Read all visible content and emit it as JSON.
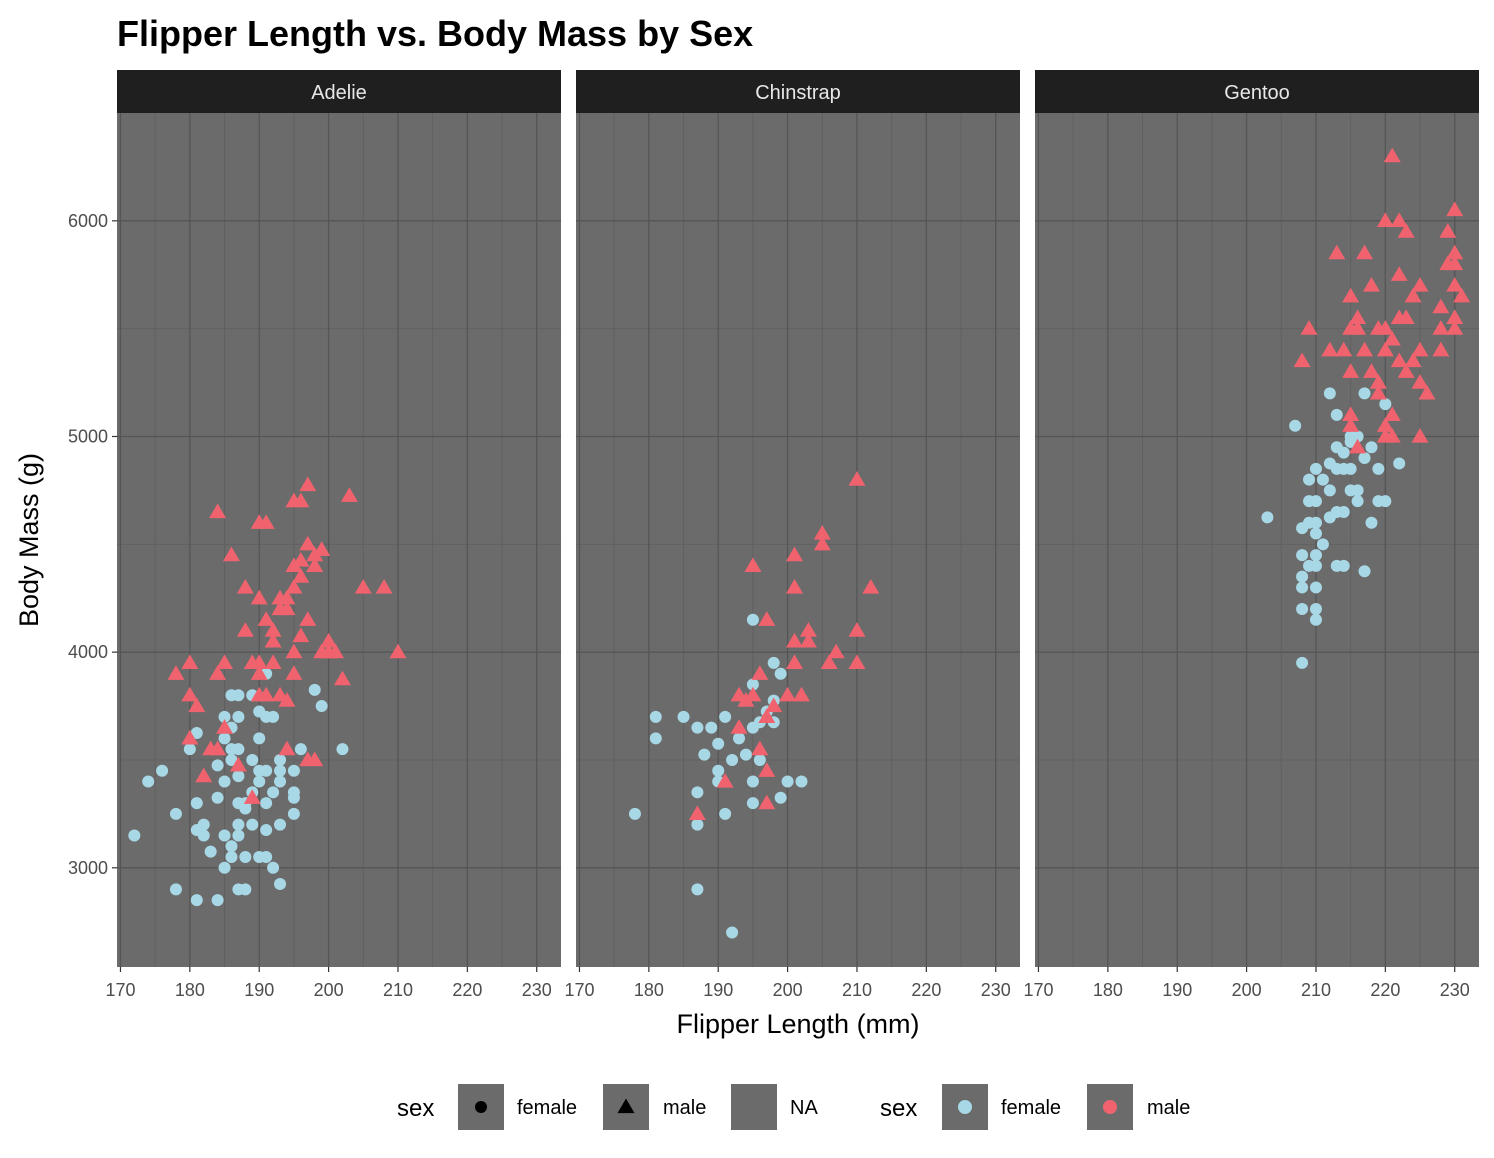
{
  "chart_data": {
    "type": "scatter",
    "title": "Flipper Length vs. Body Mass by Sex",
    "xlabel": "Flipper Length (mm)",
    "ylabel": "Body Mass (g)",
    "xlim": [
      169.5,
      233.5
    ],
    "ylim": [
      2540,
      6500
    ],
    "x_ticks": [
      170,
      180,
      190,
      200,
      210,
      220,
      230
    ],
    "y_ticks": [
      3000,
      4000,
      5000,
      6000
    ],
    "grid": true,
    "legend_position": "bottom",
    "colors": {
      "panel_bg": "#6b6b6b",
      "grid_major": "#555555",
      "grid_minor": "#606060",
      "strip_bg": "#1f1f1f",
      "female": "#a8d8e6",
      "male": "#f0636e"
    },
    "facets": [
      {
        "name": "Adelie",
        "female": [
          [
            172,
            3150
          ],
          [
            174,
            3400
          ],
          [
            176,
            3450
          ],
          [
            178,
            3250
          ],
          [
            178,
            2900
          ],
          [
            180,
            3550
          ],
          [
            181,
            3625
          ],
          [
            181,
            3300
          ],
          [
            181,
            2850
          ],
          [
            181,
            3175
          ],
          [
            182,
            3150
          ],
          [
            182,
            3200
          ],
          [
            183,
            3075
          ],
          [
            184,
            3325
          ],
          [
            184,
            3475
          ],
          [
            184,
            2850
          ],
          [
            185,
            3700
          ],
          [
            185,
            3600
          ],
          [
            185,
            3400
          ],
          [
            185,
            3150
          ],
          [
            185,
            3000
          ],
          [
            186,
            3800
          ],
          [
            186,
            3550
          ],
          [
            186,
            3500
          ],
          [
            186,
            3100
          ],
          [
            186,
            3050
          ],
          [
            187,
            3800
          ],
          [
            187,
            3700
          ],
          [
            187,
            3550
          ],
          [
            187,
            3425
          ],
          [
            187,
            3300
          ],
          [
            187,
            3200
          ],
          [
            187,
            3150
          ],
          [
            187,
            2900
          ],
          [
            188,
            3300
          ],
          [
            188,
            3050
          ],
          [
            188,
            2900
          ],
          [
            189,
            3800
          ],
          [
            189,
            3500
          ],
          [
            189,
            3200
          ],
          [
            190,
            3600
          ],
          [
            190,
            3450
          ],
          [
            190,
            3400
          ],
          [
            190,
            3050
          ],
          [
            191,
            3700
          ],
          [
            191,
            3450
          ],
          [
            191,
            3300
          ],
          [
            191,
            3175
          ],
          [
            191,
            3050
          ],
          [
            192,
            3700
          ],
          [
            192,
            3000
          ],
          [
            193,
            3500
          ],
          [
            193,
            3450
          ],
          [
            193,
            3400
          ],
          [
            193,
            3200
          ],
          [
            193,
            2925
          ],
          [
            195,
            3450
          ],
          [
            195,
            3350
          ],
          [
            195,
            3325
          ],
          [
            195,
            3250
          ],
          [
            196,
            3550
          ],
          [
            198,
            3825
          ],
          [
            199,
            3750
          ],
          [
            202,
            3550
          ],
          [
            191,
            3900
          ],
          [
            190,
            3725
          ],
          [
            186,
            3650
          ],
          [
            189,
            3350
          ],
          [
            188,
            3275
          ],
          [
            192,
            3350
          ]
        ],
        "male": [
          [
            178,
            3900
          ],
          [
            180,
            3800
          ],
          [
            180,
            3950
          ],
          [
            180,
            3600
          ],
          [
            181,
            3750
          ],
          [
            182,
            3425
          ],
          [
            183,
            3550
          ],
          [
            184,
            4650
          ],
          [
            184,
            3900
          ],
          [
            184,
            3550
          ],
          [
            185,
            3950
          ],
          [
            185,
            3650
          ],
          [
            186,
            4450
          ],
          [
            187,
            3475
          ],
          [
            188,
            4300
          ],
          [
            188,
            4100
          ],
          [
            189,
            3950
          ],
          [
            189,
            3325
          ],
          [
            190,
            4600
          ],
          [
            190,
            4250
          ],
          [
            190,
            3900
          ],
          [
            190,
            3800
          ],
          [
            190,
            3950
          ],
          [
            191,
            4600
          ],
          [
            191,
            4150
          ],
          [
            191,
            3800
          ],
          [
            192,
            4100
          ],
          [
            192,
            4050
          ],
          [
            192,
            3950
          ],
          [
            193,
            4250
          ],
          [
            193,
            4200
          ],
          [
            193,
            3800
          ],
          [
            194,
            4250
          ],
          [
            194,
            4200
          ],
          [
            194,
            3775
          ],
          [
            194,
            3550
          ],
          [
            195,
            4700
          ],
          [
            195,
            4400
          ],
          [
            195,
            4300
          ],
          [
            195,
            4000
          ],
          [
            195,
            3900
          ],
          [
            196,
            4350
          ],
          [
            196,
            4075
          ],
          [
            196,
            4700
          ],
          [
            197,
            4500
          ],
          [
            197,
            4775
          ],
          [
            197,
            4150
          ],
          [
            197,
            3500
          ],
          [
            198,
            4450
          ],
          [
            198,
            4400
          ],
          [
            199,
            4475
          ],
          [
            199,
            4000
          ],
          [
            200,
            4050
          ],
          [
            200,
            4000
          ],
          [
            201,
            4000
          ],
          [
            202,
            3875
          ],
          [
            203,
            4725
          ],
          [
            205,
            4300
          ],
          [
            208,
            4300
          ],
          [
            210,
            4000
          ],
          [
            196,
            4425
          ],
          [
            198,
            3500
          ]
        ]
      },
      {
        "name": "Chinstrap",
        "female": [
          [
            178,
            3250
          ],
          [
            181,
            3700
          ],
          [
            181,
            3600
          ],
          [
            185,
            3700
          ],
          [
            187,
            3650
          ],
          [
            187,
            3350
          ],
          [
            187,
            3200
          ],
          [
            187,
            2900
          ],
          [
            188,
            3525
          ],
          [
            189,
            3650
          ],
          [
            190,
            3575
          ],
          [
            190,
            3450
          ],
          [
            190,
            3400
          ],
          [
            191,
            3700
          ],
          [
            191,
            3250
          ],
          [
            192,
            3500
          ],
          [
            192,
            2700
          ],
          [
            193,
            3600
          ],
          [
            194,
            3525
          ],
          [
            195,
            4150
          ],
          [
            195,
            3850
          ],
          [
            195,
            3650
          ],
          [
            195,
            3300
          ],
          [
            196,
            3675
          ],
          [
            196,
            3500
          ],
          [
            197,
            3725
          ],
          [
            198,
            3775
          ],
          [
            198,
            3675
          ],
          [
            198,
            3950
          ],
          [
            199,
            3900
          ],
          [
            199,
            3325
          ],
          [
            200,
            3400
          ],
          [
            202,
            3400
          ],
          [
            195,
            3400
          ]
        ],
        "male": [
          [
            187,
            3250
          ],
          [
            191,
            3400
          ],
          [
            193,
            3800
          ],
          [
            193,
            3650
          ],
          [
            194,
            3775
          ],
          [
            195,
            4400
          ],
          [
            195,
            3800
          ],
          [
            196,
            3900
          ],
          [
            196,
            3550
          ],
          [
            197,
            4150
          ],
          [
            197,
            3700
          ],
          [
            197,
            3450
          ],
          [
            197,
            3300
          ],
          [
            198,
            3750
          ],
          [
            200,
            3800
          ],
          [
            201,
            4450
          ],
          [
            201,
            4300
          ],
          [
            201,
            4050
          ],
          [
            201,
            3950
          ],
          [
            202,
            3800
          ],
          [
            203,
            4100
          ],
          [
            203,
            4050
          ],
          [
            205,
            4550
          ],
          [
            205,
            4500
          ],
          [
            206,
            3950
          ],
          [
            207,
            4000
          ],
          [
            210,
            4800
          ],
          [
            210,
            4100
          ],
          [
            210,
            3950
          ],
          [
            212,
            4300
          ]
        ]
      },
      {
        "name": "Gentoo",
        "female": [
          [
            203,
            4625
          ],
          [
            207,
            5050
          ],
          [
            208,
            4575
          ],
          [
            208,
            4450
          ],
          [
            208,
            4350
          ],
          [
            208,
            4300
          ],
          [
            208,
            4200
          ],
          [
            208,
            3950
          ],
          [
            209,
            4800
          ],
          [
            209,
            4700
          ],
          [
            209,
            4600
          ],
          [
            209,
            4400
          ],
          [
            210,
            4850
          ],
          [
            210,
            4700
          ],
          [
            210,
            4600
          ],
          [
            210,
            4550
          ],
          [
            210,
            4450
          ],
          [
            210,
            4400
          ],
          [
            210,
            4300
          ],
          [
            210,
            4200
          ],
          [
            210,
            4150
          ],
          [
            211,
            4800
          ],
          [
            211,
            4500
          ],
          [
            212,
            5200
          ],
          [
            212,
            4875
          ],
          [
            212,
            4750
          ],
          [
            212,
            4625
          ],
          [
            213,
            5100
          ],
          [
            213,
            4950
          ],
          [
            213,
            4850
          ],
          [
            213,
            4650
          ],
          [
            213,
            4400
          ],
          [
            214,
            4925
          ],
          [
            214,
            4850
          ],
          [
            214,
            4650
          ],
          [
            214,
            4400
          ],
          [
            215,
            5000
          ],
          [
            215,
            4975
          ],
          [
            215,
            4850
          ],
          [
            215,
            4750
          ],
          [
            216,
            5000
          ],
          [
            216,
            4750
          ],
          [
            216,
            4700
          ],
          [
            217,
            4375
          ],
          [
            217,
            5200
          ],
          [
            218,
            4950
          ],
          [
            218,
            4600
          ],
          [
            219,
            4850
          ],
          [
            219,
            4700
          ],
          [
            220,
            5150
          ],
          [
            220,
            4700
          ],
          [
            222,
            4875
          ],
          [
            217,
            4900
          ]
        ],
        "male": [
          [
            208,
            5350
          ],
          [
            209,
            5500
          ],
          [
            212,
            5400
          ],
          [
            213,
            5850
          ],
          [
            214,
            5400
          ],
          [
            215,
            5650
          ],
          [
            215,
            5500
          ],
          [
            215,
            5300
          ],
          [
            215,
            5100
          ],
          [
            215,
            5050
          ],
          [
            216,
            5550
          ],
          [
            216,
            4950
          ],
          [
            217,
            5850
          ],
          [
            217,
            5400
          ],
          [
            218,
            5300
          ],
          [
            218,
            5700
          ],
          [
            219,
            5500
          ],
          [
            219,
            5250
          ],
          [
            219,
            5200
          ],
          [
            220,
            6000
          ],
          [
            220,
            5500
          ],
          [
            220,
            5400
          ],
          [
            220,
            5050
          ],
          [
            220,
            5000
          ],
          [
            221,
            6300
          ],
          [
            221,
            5450
          ],
          [
            221,
            5100
          ],
          [
            221,
            5000
          ],
          [
            222,
            6000
          ],
          [
            222,
            5750
          ],
          [
            222,
            5550
          ],
          [
            222,
            5350
          ],
          [
            223,
            5950
          ],
          [
            223,
            5550
          ],
          [
            224,
            5650
          ],
          [
            224,
            5350
          ],
          [
            225,
            5700
          ],
          [
            225,
            5400
          ],
          [
            225,
            5250
          ],
          [
            225,
            5000
          ],
          [
            226,
            5200
          ],
          [
            228,
            5600
          ],
          [
            228,
            5500
          ],
          [
            228,
            5400
          ],
          [
            229,
            5950
          ],
          [
            229,
            5800
          ],
          [
            230,
            6050
          ],
          [
            230,
            5850
          ],
          [
            230,
            5800
          ],
          [
            230,
            5700
          ],
          [
            230,
            5550
          ],
          [
            230,
            5500
          ],
          [
            231,
            5650
          ],
          [
            223,
            5300
          ],
          [
            216,
            5500
          ]
        ]
      }
    ],
    "legends": [
      {
        "title": "sex",
        "kind": "shape",
        "entries": [
          {
            "label": "female",
            "shape": "circle"
          },
          {
            "label": "male",
            "shape": "triangle"
          },
          {
            "label": "NA",
            "shape": "none"
          }
        ]
      },
      {
        "title": "sex",
        "kind": "color",
        "entries": [
          {
            "label": "female",
            "color": "#a8d8e6"
          },
          {
            "label": "male",
            "color": "#f0636e"
          }
        ]
      }
    ]
  }
}
